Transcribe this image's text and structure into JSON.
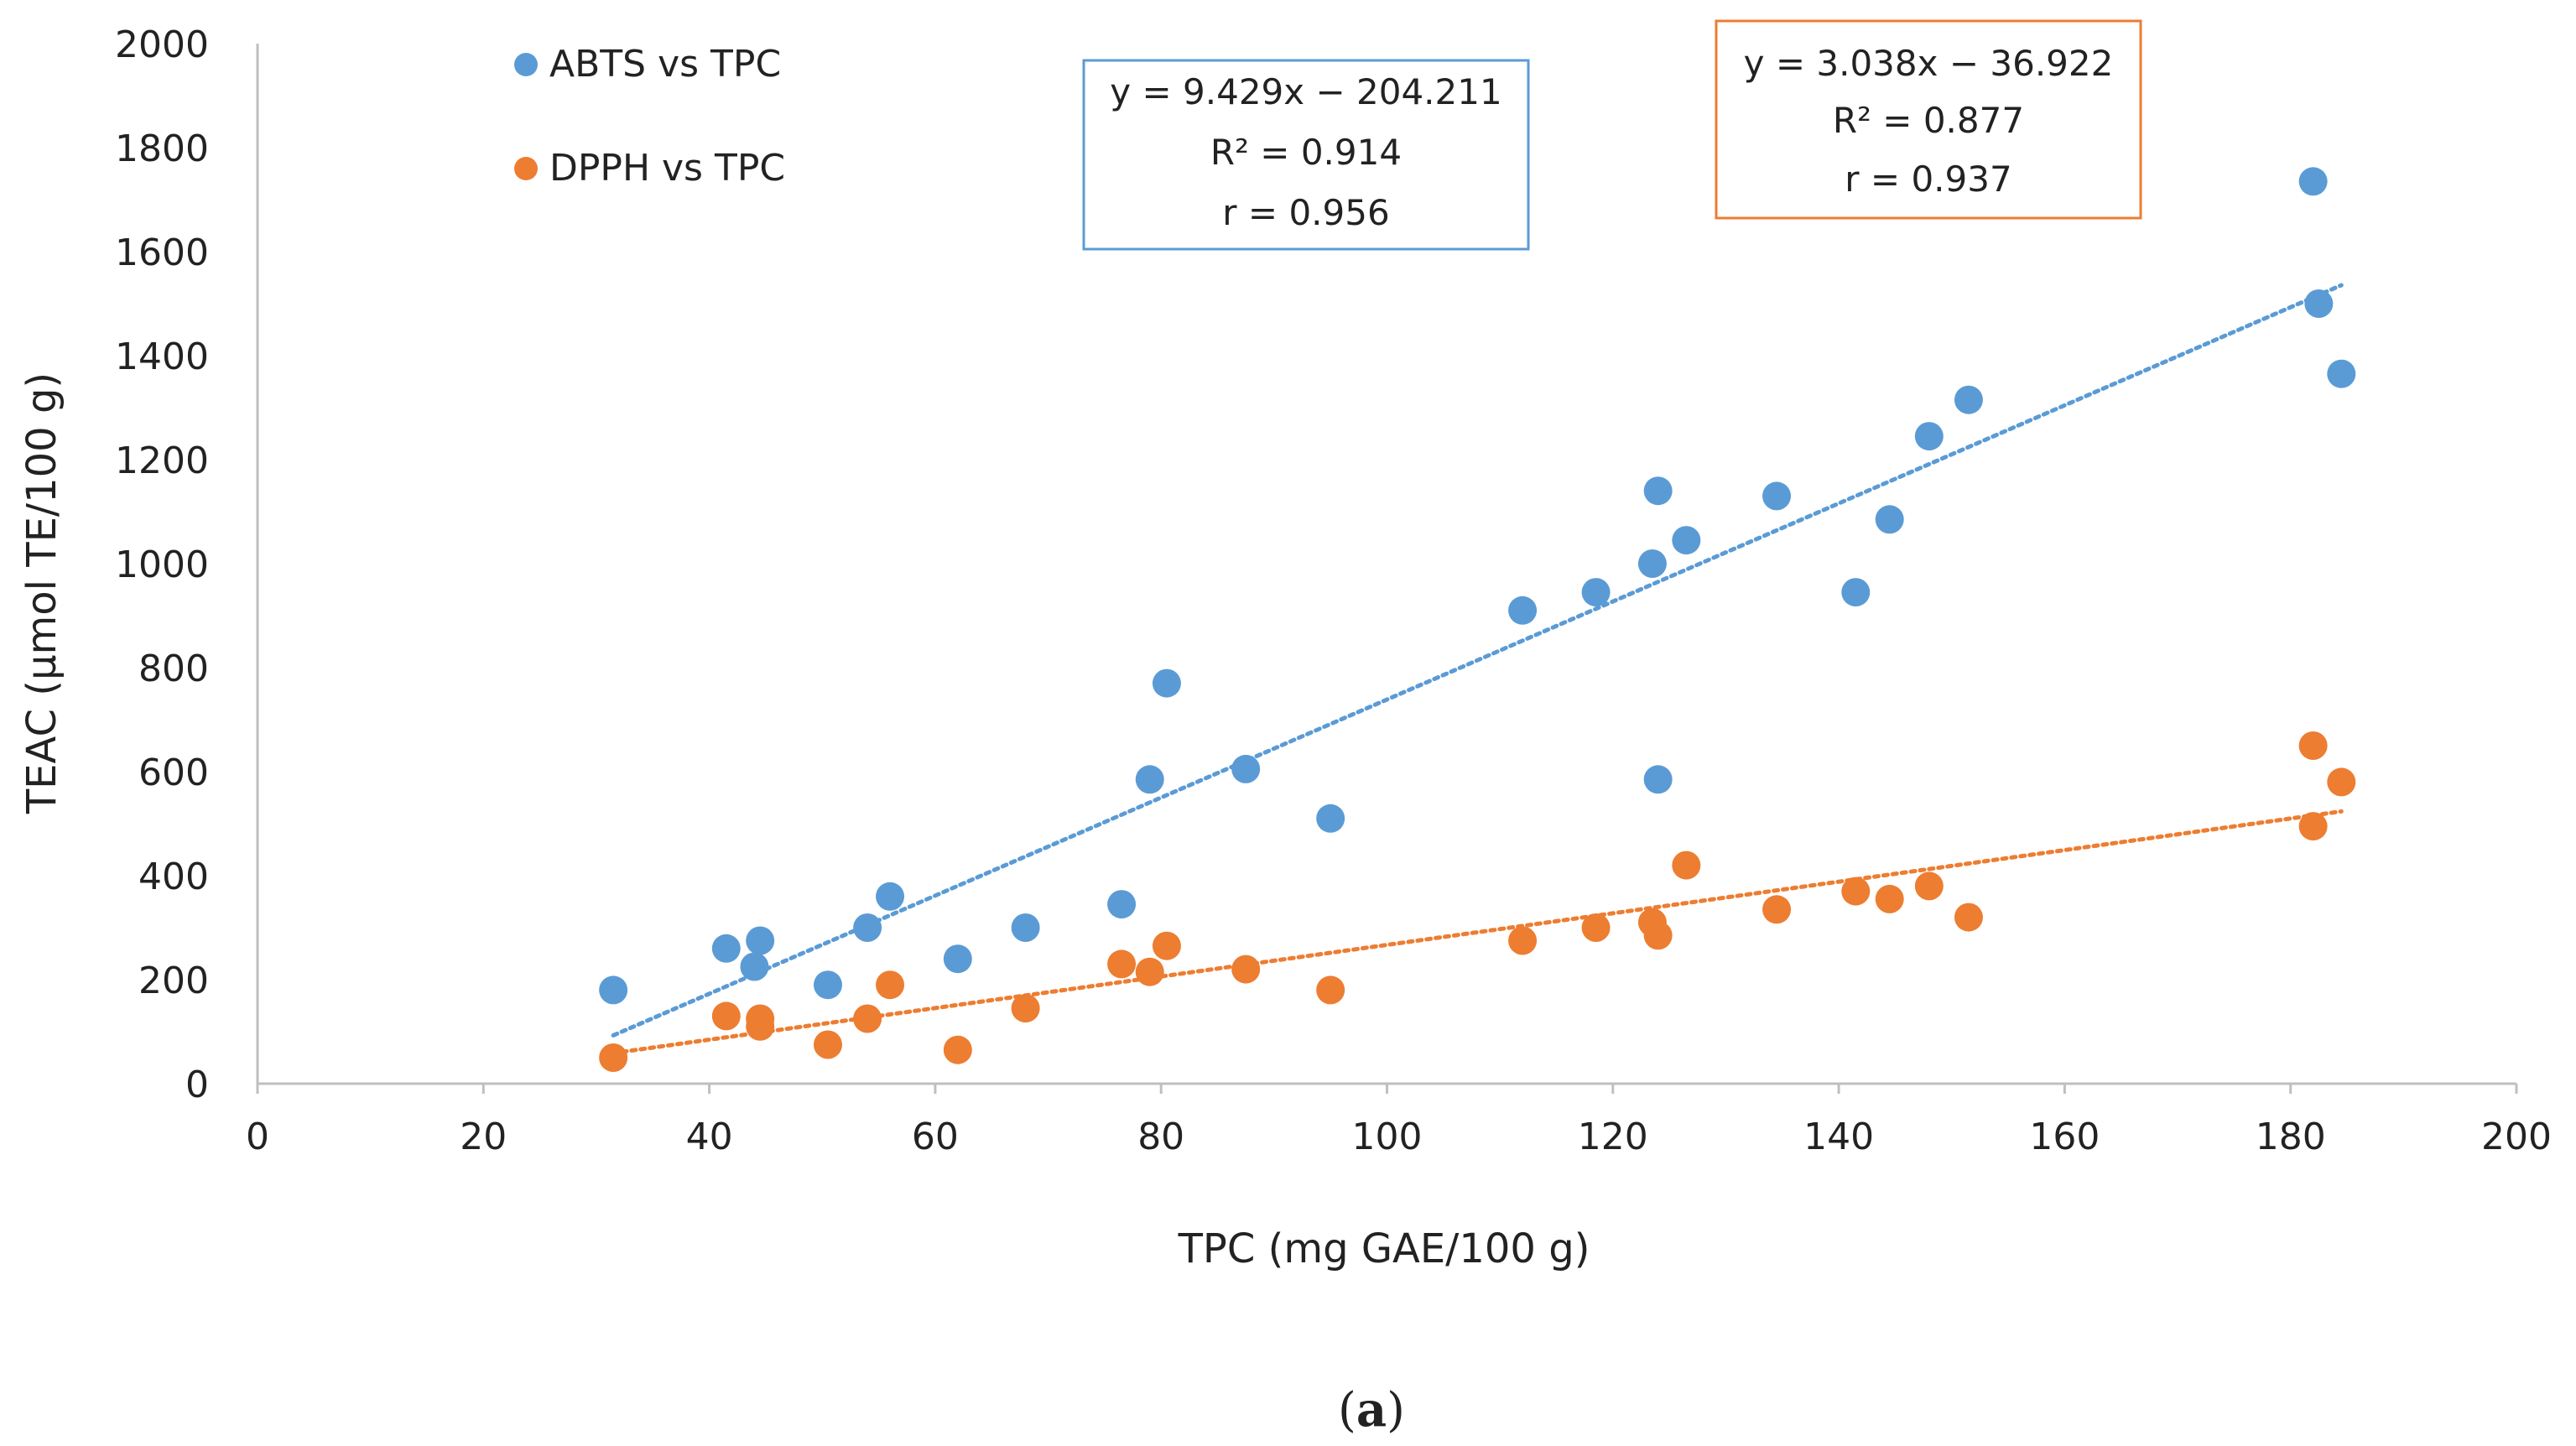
{
  "chart_data": {
    "type": "scatter",
    "title": "",
    "xlabel": "TPC (mg GAE/100  g)",
    "ylabel": "TEAC (μmol TE/100 g)",
    "xlim": [
      0,
      200
    ],
    "ylim": [
      0,
      2000
    ],
    "xticks": [
      "0",
      "20",
      "40",
      "60",
      "80",
      "100",
      "120",
      "140",
      "160",
      "180",
      "200"
    ],
    "yticks": [
      "0",
      "200",
      "400",
      "600",
      "800",
      "1000",
      "1200",
      "1400",
      "1600",
      "1800",
      "2000"
    ],
    "grid": false,
    "legend_position": "top-left",
    "series": [
      {
        "name": "ABTS vs TPC",
        "color": "#5b9bd5",
        "points": [
          [
            31.5,
            180
          ],
          [
            41.5,
            260
          ],
          [
            44,
            225
          ],
          [
            44.5,
            275
          ],
          [
            50.5,
            190
          ],
          [
            54,
            300
          ],
          [
            56,
            360
          ],
          [
            62,
            240
          ],
          [
            68,
            300
          ],
          [
            76.5,
            345
          ],
          [
            79,
            585
          ],
          [
            80.5,
            770
          ],
          [
            87.5,
            605
          ],
          [
            95,
            510
          ],
          [
            112,
            910
          ],
          [
            118.5,
            945
          ],
          [
            123.5,
            1000
          ],
          [
            124,
            585
          ],
          [
            124,
            1140
          ],
          [
            126.5,
            1045
          ],
          [
            134.5,
            1130
          ],
          [
            141.5,
            945
          ],
          [
            144.5,
            1085
          ],
          [
            148,
            1245
          ],
          [
            151.5,
            1315
          ],
          [
            182,
            1735
          ],
          [
            182.5,
            1500
          ],
          [
            184.5,
            1365
          ]
        ],
        "trendline": {
          "equation": "y = 9.429x − 204.211",
          "r_squared": "R² = 0.914",
          "r": "r = 0.956",
          "slope": 9.429,
          "intercept": -204.211,
          "x_range": [
            31.5,
            184.5
          ]
        }
      },
      {
        "name": "DPPH vs TPC",
        "color": "#ed7d31",
        "points": [
          [
            31.5,
            50
          ],
          [
            41.5,
            130
          ],
          [
            44.5,
            110
          ],
          [
            44.5,
            125
          ],
          [
            50.5,
            75
          ],
          [
            54,
            125
          ],
          [
            56,
            190
          ],
          [
            62,
            65
          ],
          [
            68,
            145
          ],
          [
            76.5,
            230
          ],
          [
            79,
            215
          ],
          [
            80.5,
            265
          ],
          [
            87.5,
            220
          ],
          [
            95,
            180
          ],
          [
            112,
            275
          ],
          [
            118.5,
            300
          ],
          [
            123.5,
            310
          ],
          [
            124,
            285
          ],
          [
            126.5,
            420
          ],
          [
            134.5,
            335
          ],
          [
            141.5,
            370
          ],
          [
            144.5,
            355
          ],
          [
            148,
            380
          ],
          [
            151.5,
            320
          ],
          [
            182,
            650
          ],
          [
            182,
            495
          ],
          [
            184.5,
            580
          ]
        ],
        "trendline": {
          "equation": "y = 3.038x − 36.922",
          "r_squared": "R² = 0.877",
          "r": "r = 0.937",
          "slope": 3.038,
          "intercept": -36.922,
          "x_range": [
            31.5,
            184.5
          ]
        }
      }
    ]
  },
  "caption": {
    "paren_open": "(",
    "letter": "a",
    "paren_close": ")"
  }
}
